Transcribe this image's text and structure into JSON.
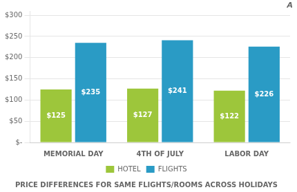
{
  "chart_data": {
    "type": "bar",
    "title": "PRICE DIFFERENCES FOR SAME FLIGHTS/ROOMS ACROSS HOLIDAYS",
    "categories": [
      "MEMORIAL DAY",
      "4TH OF JULY",
      "LABOR DAY"
    ],
    "series": [
      {
        "name": "HOTEL",
        "color": "#9dc63b",
        "values": [
          125,
          127,
          122
        ],
        "value_labels": [
          "$125",
          "$127",
          "$122"
        ]
      },
      {
        "name": "FLIGHTS",
        "color": "#2a9bc5",
        "values": [
          235,
          241,
          226
        ],
        "value_labels": [
          "$235",
          "$241",
          "$226"
        ]
      }
    ],
    "ylim": [
      0,
      310
    ],
    "yticks": [
      {
        "value": 0,
        "label": "$-"
      },
      {
        "value": 50,
        "label": "$50"
      },
      {
        "value": 100,
        "label": "$100"
      },
      {
        "value": 150,
        "label": "$150"
      },
      {
        "value": 200,
        "label": "$200"
      },
      {
        "value": 250,
        "label": "$250"
      },
      {
        "value": 300,
        "label": "$300"
      }
    ],
    "grid": true,
    "legend": "bottom",
    "data_labels": true,
    "annotations": [
      "A"
    ]
  }
}
